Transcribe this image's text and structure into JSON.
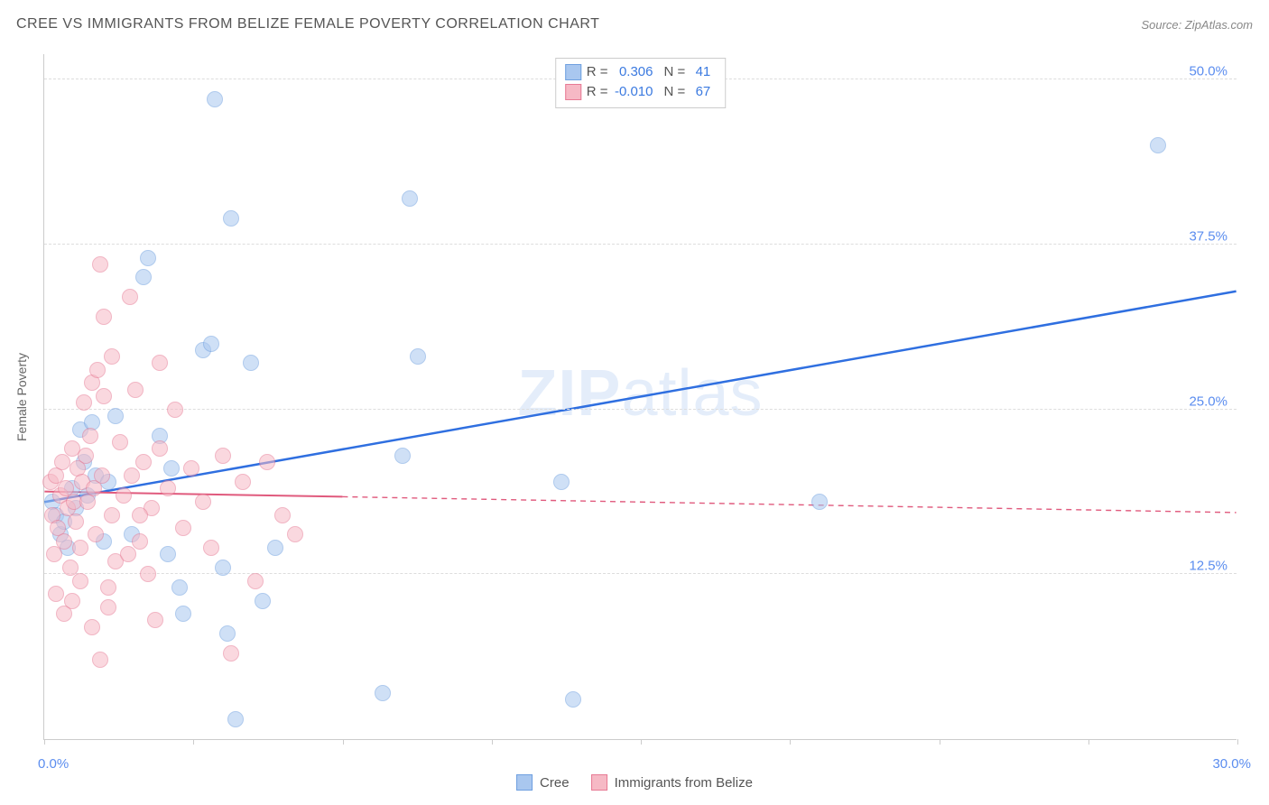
{
  "title": "CREE VS IMMIGRANTS FROM BELIZE FEMALE POVERTY CORRELATION CHART",
  "source": "Source: ZipAtlas.com",
  "watermark_a": "ZIP",
  "watermark_b": "atlas",
  "y_axis_label": "Female Poverty",
  "chart": {
    "type": "scatter",
    "background_color": "#ffffff",
    "grid_color": "#dddddd",
    "axis_color": "#cccccc",
    "label_color": "#5b8def",
    "xlim": [
      0,
      30
    ],
    "ylim": [
      0,
      52
    ],
    "x_ticks": [
      0,
      3.75,
      7.5,
      11.25,
      15,
      18.75,
      22.5,
      26.25,
      30
    ],
    "x_tick_labels": {
      "0": "0.0%",
      "30": "30.0%"
    },
    "y_gridlines": [
      12.5,
      25.0,
      37.5,
      50.0
    ],
    "y_tick_labels": [
      "12.5%",
      "25.0%",
      "37.5%",
      "50.0%"
    ],
    "point_radius": 9,
    "point_border_width": 1.5,
    "series": [
      {
        "name": "Cree",
        "fill_color": "#a9c7ef",
        "stroke_color": "#6fa0e0",
        "fill_opacity": 0.55,
        "R_label": "R =",
        "R_value": "0.306",
        "N_label": "N =",
        "N_value": "41",
        "trend": {
          "x1": 0,
          "y1": 18.0,
          "x2": 30,
          "y2": 34.0,
          "solid_until_x": 30,
          "color": "#2f6fe0",
          "width": 2.5
        },
        "points": [
          [
            0.2,
            18.0
          ],
          [
            0.3,
            17.0
          ],
          [
            0.4,
            15.5
          ],
          [
            0.5,
            16.5
          ],
          [
            0.6,
            14.5
          ],
          [
            0.7,
            19.0
          ],
          [
            0.8,
            17.5
          ],
          [
            0.9,
            23.5
          ],
          [
            1.0,
            21.0
          ],
          [
            1.1,
            18.5
          ],
          [
            1.2,
            24.0
          ],
          [
            1.3,
            20.0
          ],
          [
            1.5,
            15.0
          ],
          [
            1.6,
            19.5
          ],
          [
            1.8,
            24.5
          ],
          [
            2.2,
            15.5
          ],
          [
            2.5,
            35.0
          ],
          [
            2.6,
            36.5
          ],
          [
            2.9,
            23.0
          ],
          [
            3.1,
            14.0
          ],
          [
            3.2,
            20.5
          ],
          [
            3.4,
            11.5
          ],
          [
            3.5,
            9.5
          ],
          [
            4.0,
            29.5
          ],
          [
            4.2,
            30.0
          ],
          [
            4.3,
            48.5
          ],
          [
            4.5,
            13.0
          ],
          [
            4.6,
            8.0
          ],
          [
            4.7,
            39.5
          ],
          [
            4.8,
            1.5
          ],
          [
            5.2,
            28.5
          ],
          [
            5.5,
            10.5
          ],
          [
            5.8,
            14.5
          ],
          [
            8.5,
            3.5
          ],
          [
            9.0,
            21.5
          ],
          [
            9.2,
            41.0
          ],
          [
            9.4,
            29.0
          ],
          [
            13.0,
            19.5
          ],
          [
            13.3,
            3.0
          ],
          [
            19.5,
            18.0
          ],
          [
            28.0,
            45.0
          ]
        ]
      },
      {
        "name": "Immigrants from Belize",
        "fill_color": "#f6b9c5",
        "stroke_color": "#e77a94",
        "fill_opacity": 0.55,
        "R_label": "R =",
        "R_value": "-0.010",
        "N_label": "N =",
        "N_value": "67",
        "trend": {
          "x1": 0,
          "y1": 18.8,
          "x2": 30,
          "y2": 17.2,
          "solid_until_x": 7.5,
          "color": "#e05a7d",
          "width": 2
        },
        "points": [
          [
            0.15,
            19.5
          ],
          [
            0.2,
            17.0
          ],
          [
            0.25,
            14.0
          ],
          [
            0.3,
            20.0
          ],
          [
            0.35,
            16.0
          ],
          [
            0.4,
            18.5
          ],
          [
            0.45,
            21.0
          ],
          [
            0.5,
            15.0
          ],
          [
            0.55,
            19.0
          ],
          [
            0.6,
            17.5
          ],
          [
            0.65,
            13.0
          ],
          [
            0.7,
            22.0
          ],
          [
            0.75,
            18.0
          ],
          [
            0.8,
            16.5
          ],
          [
            0.85,
            20.5
          ],
          [
            0.9,
            14.5
          ],
          [
            0.95,
            19.5
          ],
          [
            0.3,
            11.0
          ],
          [
            0.5,
            9.5
          ],
          [
            0.7,
            10.5
          ],
          [
            0.9,
            12.0
          ],
          [
            1.0,
            25.5
          ],
          [
            1.05,
            21.5
          ],
          [
            1.1,
            18.0
          ],
          [
            1.15,
            23.0
          ],
          [
            1.2,
            27.0
          ],
          [
            1.25,
            19.0
          ],
          [
            1.3,
            15.5
          ],
          [
            1.35,
            28.0
          ],
          [
            1.4,
            36.0
          ],
          [
            1.45,
            20.0
          ],
          [
            1.5,
            26.0
          ],
          [
            1.5,
            32.0
          ],
          [
            1.6,
            10.0
          ],
          [
            1.7,
            17.0
          ],
          [
            1.7,
            29.0
          ],
          [
            1.8,
            13.5
          ],
          [
            1.9,
            22.5
          ],
          [
            1.2,
            8.5
          ],
          [
            1.4,
            6.0
          ],
          [
            1.6,
            11.5
          ],
          [
            2.0,
            18.5
          ],
          [
            2.1,
            14.0
          ],
          [
            2.15,
            33.5
          ],
          [
            2.2,
            20.0
          ],
          [
            2.3,
            26.5
          ],
          [
            2.4,
            15.0
          ],
          [
            2.5,
            21.0
          ],
          [
            2.6,
            12.5
          ],
          [
            2.7,
            17.5
          ],
          [
            2.8,
            9.0
          ],
          [
            2.9,
            22.0
          ],
          [
            2.9,
            28.5
          ],
          [
            2.4,
            17.0
          ],
          [
            3.1,
            19.0
          ],
          [
            3.3,
            25.0
          ],
          [
            3.5,
            16.0
          ],
          [
            3.7,
            20.5
          ],
          [
            4.0,
            18.0
          ],
          [
            4.2,
            14.5
          ],
          [
            4.5,
            21.5
          ],
          [
            4.7,
            6.5
          ],
          [
            5.0,
            19.5
          ],
          [
            5.3,
            12.0
          ],
          [
            5.6,
            21.0
          ],
          [
            6.0,
            17.0
          ],
          [
            6.3,
            15.5
          ]
        ]
      }
    ]
  },
  "bottom_legend": [
    {
      "label": "Cree",
      "fill": "#a9c7ef",
      "stroke": "#6fa0e0"
    },
    {
      "label": "Immigrants from Belize",
      "fill": "#f6b9c5",
      "stroke": "#e77a94"
    }
  ]
}
